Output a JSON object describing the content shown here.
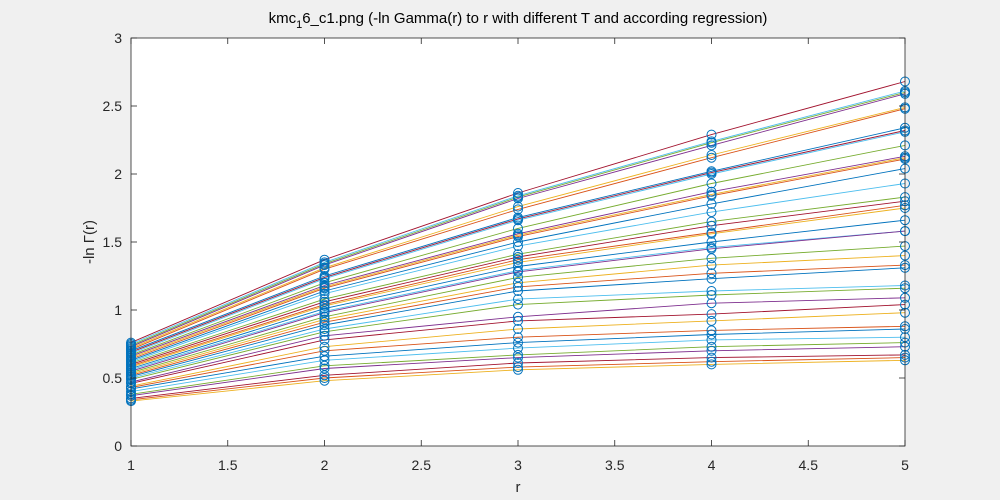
{
  "chart_data": {
    "type": "line",
    "title": {
      "prefix": "kmc",
      "subscript": "1",
      "suffix": "6_c1.png (-ln Gamma(r) to r with different T and according regression)"
    },
    "xlabel": "r",
    "ylabel": "-ln Γ(r)",
    "xlim": [
      1,
      5
    ],
    "ylim": [
      0,
      3
    ],
    "xticks": [
      1,
      1.5,
      2,
      2.5,
      3,
      3.5,
      4,
      4.5,
      5
    ],
    "xtick_labels": [
      "1",
      "1.5",
      "2",
      "2.5",
      "3",
      "3.5",
      "4",
      "4.5",
      "5"
    ],
    "yticks": [
      0,
      0.5,
      1,
      1.5,
      2,
      2.5,
      3
    ],
    "ytick_labels": [
      "0",
      "0.5",
      "1",
      "1.5",
      "2",
      "2.5",
      "3"
    ],
    "grid": false,
    "legend": "none",
    "marker_color": "#0072bd",
    "x": [
      1,
      2,
      3,
      4,
      5
    ],
    "series": [
      {
        "color": "#a2142f",
        "values": [
          0.76,
          1.37,
          1.86,
          2.29,
          2.68
        ]
      },
      {
        "color": "#4dbeee",
        "values": [
          0.75,
          1.35,
          1.84,
          2.24,
          2.61
        ]
      },
      {
        "color": "#77ac30",
        "values": [
          0.74,
          1.34,
          1.83,
          2.23,
          2.6
        ]
      },
      {
        "color": "#7e2f8e",
        "values": [
          0.73,
          1.33,
          1.82,
          2.21,
          2.59
        ]
      },
      {
        "color": "#edb120",
        "values": [
          0.72,
          1.31,
          1.76,
          2.14,
          2.49
        ]
      },
      {
        "color": "#d95319",
        "values": [
          0.71,
          1.3,
          1.74,
          2.12,
          2.48
        ]
      },
      {
        "color": "#0072bd",
        "values": [
          0.7,
          1.25,
          1.68,
          2.02,
          2.34
        ]
      },
      {
        "color": "#a2142f",
        "values": [
          0.69,
          1.24,
          1.67,
          2.01,
          2.32
        ]
      },
      {
        "color": "#4dbeee",
        "values": [
          0.68,
          1.23,
          1.66,
          2.0,
          2.31
        ]
      },
      {
        "color": "#77ac30",
        "values": [
          0.67,
          1.2,
          1.6,
          1.93,
          2.21
        ]
      },
      {
        "color": "#7e2f8e",
        "values": [
          0.66,
          1.18,
          1.56,
          1.87,
          2.13
        ]
      },
      {
        "color": "#edb120",
        "values": [
          0.65,
          1.17,
          1.55,
          1.85,
          2.12
        ]
      },
      {
        "color": "#d95319",
        "values": [
          0.64,
          1.16,
          1.54,
          1.84,
          2.11
        ]
      },
      {
        "color": "#0072bd",
        "values": [
          0.63,
          1.14,
          1.5,
          1.78,
          2.04
        ]
      },
      {
        "color": "#4dbeee",
        "values": [
          0.62,
          1.12,
          1.47,
          1.72,
          1.93
        ]
      },
      {
        "color": "#77ac30",
        "values": [
          0.61,
          1.08,
          1.41,
          1.65,
          1.83
        ]
      },
      {
        "color": "#a2142f",
        "values": [
          0.6,
          1.06,
          1.39,
          1.62,
          1.8
        ]
      },
      {
        "color": "#d95319",
        "values": [
          0.59,
          1.04,
          1.37,
          1.57,
          1.77
        ]
      },
      {
        "color": "#edb120",
        "values": [
          0.58,
          1.03,
          1.35,
          1.56,
          1.75
        ]
      },
      {
        "color": "#0072bd",
        "values": [
          0.57,
          1.01,
          1.32,
          1.5,
          1.66
        ]
      },
      {
        "color": "#4dbeee",
        "values": [
          0.56,
          0.99,
          1.29,
          1.46,
          1.58
        ]
      },
      {
        "color": "#7e2f8e",
        "values": [
          0.55,
          0.98,
          1.28,
          1.45,
          1.58
        ]
      },
      {
        "color": "#77ac30",
        "values": [
          0.54,
          0.95,
          1.24,
          1.38,
          1.47
        ]
      },
      {
        "color": "#edb120",
        "values": [
          0.53,
          0.93,
          1.2,
          1.33,
          1.4
        ]
      },
      {
        "color": "#d95319",
        "values": [
          0.52,
          0.91,
          1.17,
          1.27,
          1.33
        ]
      },
      {
        "color": "#0072bd",
        "values": [
          0.51,
          0.89,
          1.14,
          1.23,
          1.31
        ]
      },
      {
        "color": "#4dbeee",
        "values": [
          0.5,
          0.86,
          1.08,
          1.14,
          1.18
        ]
      },
      {
        "color": "#77ac30",
        "values": [
          0.49,
          0.84,
          1.04,
          1.11,
          1.16
        ]
      },
      {
        "color": "#7e2f8e",
        "values": [
          0.47,
          0.81,
          0.95,
          1.05,
          1.09
        ]
      },
      {
        "color": "#a2142f",
        "values": [
          0.46,
          0.78,
          0.92,
          0.97,
          1.04
        ]
      },
      {
        "color": "#edb120",
        "values": [
          0.44,
          0.73,
          0.86,
          0.92,
          0.98
        ]
      },
      {
        "color": "#d95319",
        "values": [
          0.43,
          0.7,
          0.8,
          0.85,
          0.88
        ]
      },
      {
        "color": "#0072bd",
        "values": [
          0.42,
          0.66,
          0.76,
          0.82,
          0.86
        ]
      },
      {
        "color": "#4dbeee",
        "values": [
          0.4,
          0.63,
          0.72,
          0.78,
          0.8
        ]
      },
      {
        "color": "#77ac30",
        "values": [
          0.38,
          0.59,
          0.67,
          0.73,
          0.76
        ]
      },
      {
        "color": "#7e2f8e",
        "values": [
          0.37,
          0.57,
          0.65,
          0.7,
          0.73
        ]
      },
      {
        "color": "#a2142f",
        "values": [
          0.35,
          0.52,
          0.61,
          0.65,
          0.67
        ]
      },
      {
        "color": "#d95319",
        "values": [
          0.34,
          0.5,
          0.58,
          0.62,
          0.65
        ]
      },
      {
        "color": "#edb120",
        "values": [
          0.33,
          0.48,
          0.56,
          0.6,
          0.63
        ]
      }
    ]
  }
}
